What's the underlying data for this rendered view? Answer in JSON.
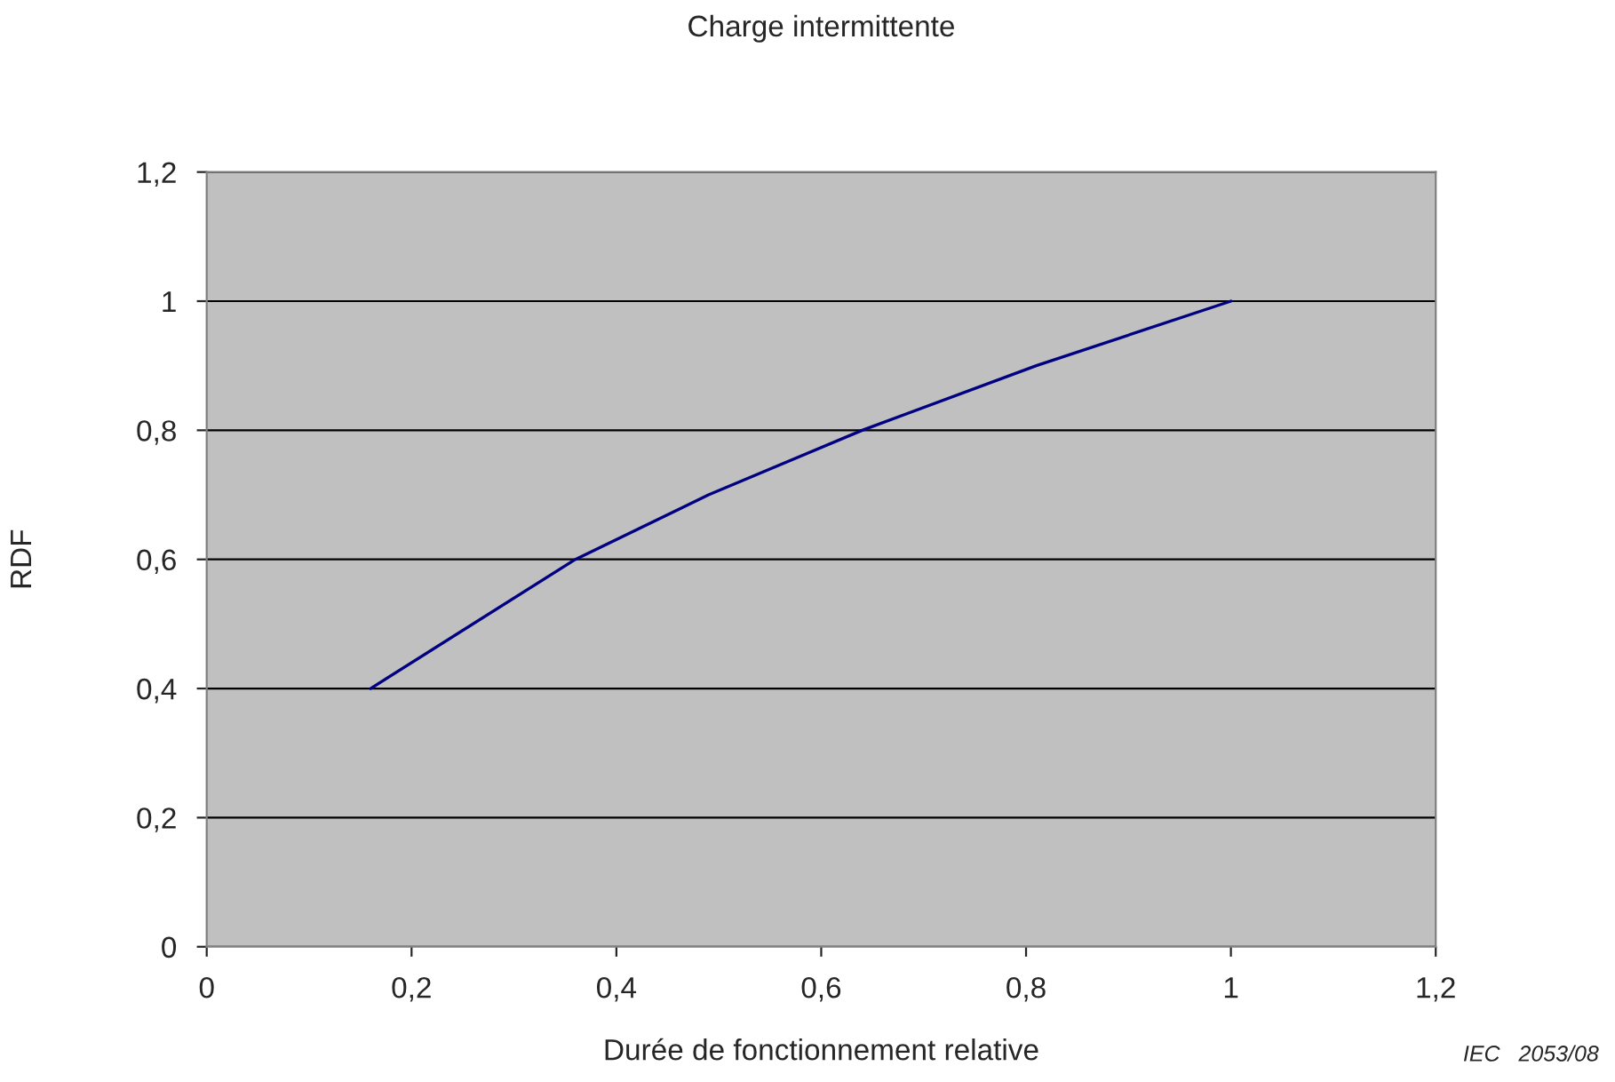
{
  "chart_data": {
    "type": "line",
    "title": "Charge intermittente",
    "xlabel": "Durée de fonctionnement relative",
    "ylabel": "RDF",
    "x": [
      0.16,
      0.36,
      0.49,
      0.64,
      0.81,
      1.0
    ],
    "series": [
      {
        "color": "#000080",
        "values": [
          0.4,
          0.6,
          0.7,
          0.8,
          0.9,
          1.0
        ]
      }
    ],
    "xlim": [
      0,
      1.2
    ],
    "ylim": [
      0,
      1.2
    ],
    "xticks": [
      0,
      {
        "value": 0.2,
        "label": "0,2"
      },
      {
        "value": 0.4,
        "label": "0,4"
      },
      {
        "value": 0.6,
        "label": "0,6"
      },
      {
        "value": 0.8,
        "label": "0,8"
      },
      1,
      {
        "value": 1.2,
        "label": "1,2"
      }
    ],
    "yticks": [
      0,
      {
        "value": 0.2,
        "label": "0,2"
      },
      {
        "value": 0.4,
        "label": "0,4"
      },
      {
        "value": 0.6,
        "label": "0,6"
      },
      {
        "value": 0.8,
        "label": "0,8"
      },
      1,
      {
        "value": 1.2,
        "label": "1,2"
      }
    ],
    "grid": "y",
    "marker": "none",
    "line_style": "solid",
    "legend": false,
    "annotations": [
      "IEC   2053/08"
    ]
  }
}
